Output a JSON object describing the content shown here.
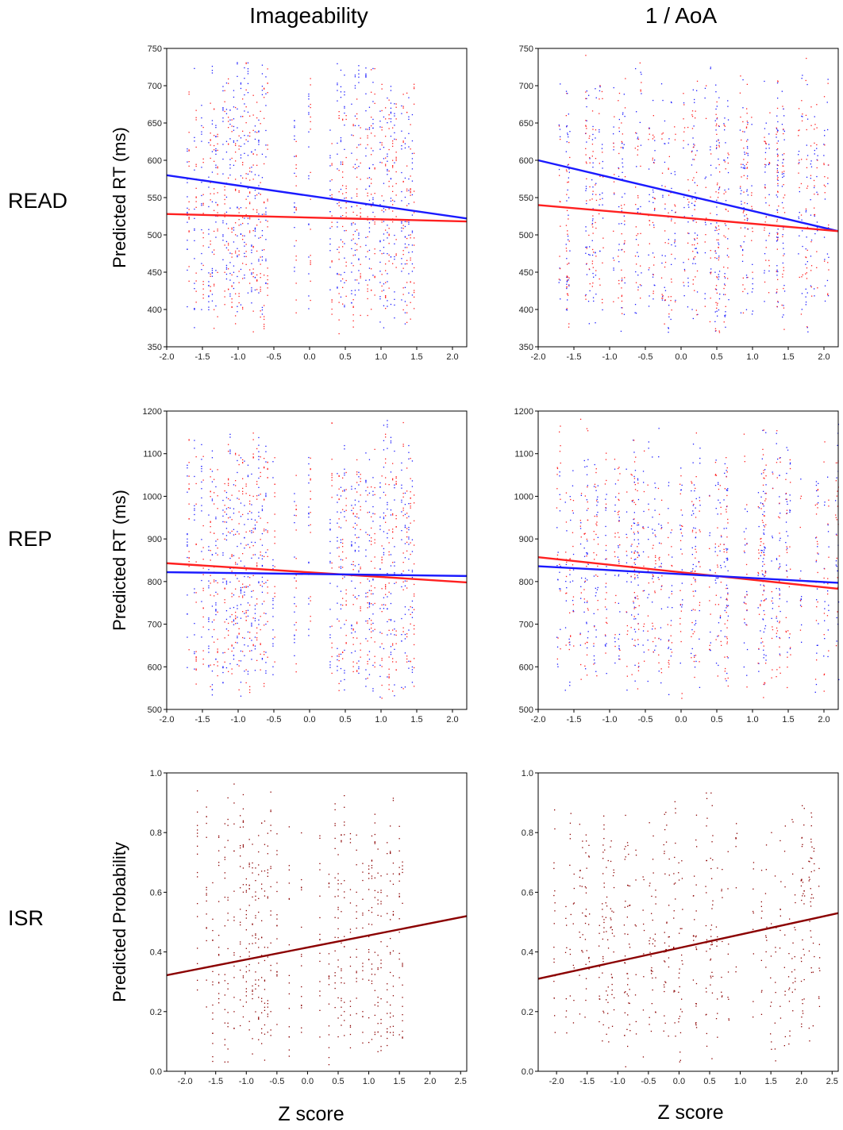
{
  "column_titles": [
    "Imageability",
    "1 / AoA"
  ],
  "row_labels": [
    "READ",
    "REP",
    "ISR"
  ],
  "xlabel": "Z score",
  "colors": {
    "blue": "#1a1aff",
    "red": "#ff2020",
    "darkred": "#8b0000"
  },
  "chart_data": [
    {
      "id": "read-imageability",
      "type": "scatter",
      "ylabel": "Predicted RT (ms)",
      "xlim": [
        -2.0,
        2.2
      ],
      "ylim": [
        350,
        750
      ],
      "xticks": [
        -2.0,
        -1.5,
        -1.0,
        -0.5,
        0.0,
        0.5,
        1.0,
        1.5,
        2.0
      ],
      "yticks": [
        350,
        400,
        450,
        500,
        550,
        600,
        650,
        700,
        750
      ],
      "x_columns": [
        -1.7,
        -1.6,
        -1.5,
        -1.4,
        -1.35,
        -1.3,
        -1.2,
        -1.15,
        -1.1,
        -1.05,
        -1.0,
        -0.95,
        -0.9,
        -0.85,
        -0.8,
        -0.75,
        -0.7,
        -0.65,
        -0.6,
        -0.2,
        0.0,
        0.3,
        0.4,
        0.45,
        0.5,
        0.6,
        0.65,
        0.7,
        0.8,
        0.85,
        0.9,
        1.0,
        1.05,
        1.1,
        1.15,
        1.2,
        1.3,
        1.35,
        1.4,
        1.45
      ],
      "scatter_range": [
        360,
        745
      ],
      "point_colors": [
        "blue",
        "red"
      ],
      "series": [
        {
          "name": "",
          "color": "blue",
          "line": [
            [
              -2.0,
              580
            ],
            [
              2.2,
              522
            ]
          ]
        },
        {
          "name": "",
          "color": "red",
          "line": [
            [
              -2.0,
              528
            ],
            [
              2.2,
              518
            ]
          ]
        }
      ]
    },
    {
      "id": "read-aoa",
      "type": "scatter",
      "ylabel": "",
      "xlim": [
        -2.0,
        2.2
      ],
      "ylim": [
        350,
        750
      ],
      "xticks": [
        -2.0,
        -1.5,
        -1.0,
        -0.5,
        0.0,
        0.5,
        1.0,
        1.5,
        2.0
      ],
      "yticks": [
        350,
        400,
        450,
        500,
        550,
        600,
        650,
        700,
        750
      ],
      "x_dense": [
        -1.7,
        2.1
      ],
      "scatter_range": [
        360,
        745
      ],
      "point_colors": [
        "blue",
        "red"
      ],
      "series": [
        {
          "name": "",
          "color": "blue",
          "line": [
            [
              -2.0,
              600
            ],
            [
              2.2,
              505
            ]
          ]
        },
        {
          "name": "",
          "color": "red",
          "line": [
            [
              -2.0,
              540
            ],
            [
              2.2,
              505
            ]
          ]
        }
      ]
    },
    {
      "id": "rep-imageability",
      "type": "scatter",
      "ylabel": "Predicted RT (ms)",
      "xlim": [
        -2.0,
        2.2
      ],
      "ylim": [
        500,
        1200
      ],
      "xticks": [
        -2.0,
        -1.5,
        -1.0,
        -0.5,
        0.0,
        0.5,
        1.0,
        1.5,
        2.0
      ],
      "yticks": [
        500,
        600,
        700,
        800,
        900,
        1000,
        1100,
        1200
      ],
      "x_columns": [
        -1.7,
        -1.6,
        -1.5,
        -1.4,
        -1.35,
        -1.3,
        -1.2,
        -1.15,
        -1.1,
        -1.05,
        -1.0,
        -0.95,
        -0.9,
        -0.85,
        -0.8,
        -0.75,
        -0.7,
        -0.65,
        -0.6,
        -0.5,
        -0.2,
        0.0,
        0.3,
        0.4,
        0.45,
        0.5,
        0.6,
        0.65,
        0.7,
        0.8,
        0.85,
        0.9,
        1.0,
        1.05,
        1.1,
        1.15,
        1.2,
        1.3,
        1.35,
        1.4,
        1.45
      ],
      "scatter_range": [
        520,
        1190
      ],
      "point_colors": [
        "blue",
        "red"
      ],
      "series": [
        {
          "name": "",
          "color": "red",
          "line": [
            [
              -2.0,
              843
            ],
            [
              2.2,
              798
            ]
          ]
        },
        {
          "name": "",
          "color": "blue",
          "line": [
            [
              -2.0,
              822
            ],
            [
              2.2,
              813
            ]
          ]
        }
      ]
    },
    {
      "id": "rep-aoa",
      "type": "scatter",
      "ylabel": "",
      "xlim": [
        -2.0,
        2.2
      ],
      "ylim": [
        500,
        1200
      ],
      "xticks": [
        -2.0,
        -1.5,
        -1.0,
        -0.5,
        0.0,
        0.5,
        1.0,
        1.5,
        2.0
      ],
      "yticks": [
        500,
        600,
        700,
        800,
        900,
        1000,
        1100,
        1200
      ],
      "x_dense": [
        -1.8,
        2.2
      ],
      "scatter_range": [
        510,
        1195
      ],
      "point_colors": [
        "blue",
        "red"
      ],
      "series": [
        {
          "name": "",
          "color": "red",
          "line": [
            [
              -2.0,
              857
            ],
            [
              2.2,
              783
            ]
          ]
        },
        {
          "name": "",
          "color": "blue",
          "line": [
            [
              -2.0,
              836
            ],
            [
              2.2,
              797
            ]
          ]
        }
      ]
    },
    {
      "id": "isr-imageability",
      "type": "scatter",
      "ylabel": "Predicted Probability",
      "xlim": [
        -2.3,
        2.6
      ],
      "ylim": [
        0.0,
        1.0
      ],
      "xticks": [
        -2.0,
        -1.5,
        -1.0,
        -0.5,
        0.0,
        0.5,
        1.0,
        1.5,
        2.0,
        2.5
      ],
      "yticks": [
        0.0,
        0.2,
        0.4,
        0.6,
        0.8,
        1.0
      ],
      "ytick_labels": [
        "0.0",
        "0.2",
        "0.4",
        "0.6",
        "0.8",
        "1.0"
      ],
      "x_columns": [
        -1.8,
        -1.65,
        -1.55,
        -1.45,
        -1.35,
        -1.3,
        -1.2,
        -1.1,
        -1.05,
        -1.0,
        -0.95,
        -0.9,
        -0.85,
        -0.8,
        -0.75,
        -0.7,
        -0.65,
        -0.6,
        -0.5,
        -0.3,
        -0.1,
        0.2,
        0.35,
        0.45,
        0.5,
        0.55,
        0.6,
        0.7,
        0.8,
        0.9,
        1.0,
        1.05,
        1.1,
        1.15,
        1.2,
        1.3,
        1.35,
        1.4,
        1.5,
        1.55
      ],
      "scatter_range": [
        0.0,
        0.97
      ],
      "point_colors": [
        "darkred"
      ],
      "series": [
        {
          "name": "",
          "color": "darkred",
          "line": [
            [
              -2.3,
              0.322
            ],
            [
              2.6,
              0.52
            ]
          ]
        }
      ]
    },
    {
      "id": "isr-aoa",
      "type": "scatter",
      "ylabel": "",
      "xlim": [
        -2.3,
        2.6
      ],
      "ylim": [
        0.0,
        1.0
      ],
      "xticks": [
        -2.0,
        -1.5,
        -1.0,
        -0.5,
        0.0,
        0.5,
        1.0,
        1.5,
        2.0,
        2.5
      ],
      "yticks": [
        0.0,
        0.2,
        0.4,
        0.6,
        0.8,
        1.0
      ],
      "ytick_labels": [
        "0.0",
        "0.2",
        "0.4",
        "0.6",
        "0.8",
        "1.0"
      ],
      "x_dense": [
        -2.1,
        2.3
      ],
      "scatter_range": [
        0.0,
        0.97
      ],
      "point_colors": [
        "darkred"
      ],
      "series": [
        {
          "name": "",
          "color": "darkred",
          "line": [
            [
              -2.3,
              0.31
            ],
            [
              2.6,
              0.53
            ]
          ]
        }
      ]
    }
  ]
}
